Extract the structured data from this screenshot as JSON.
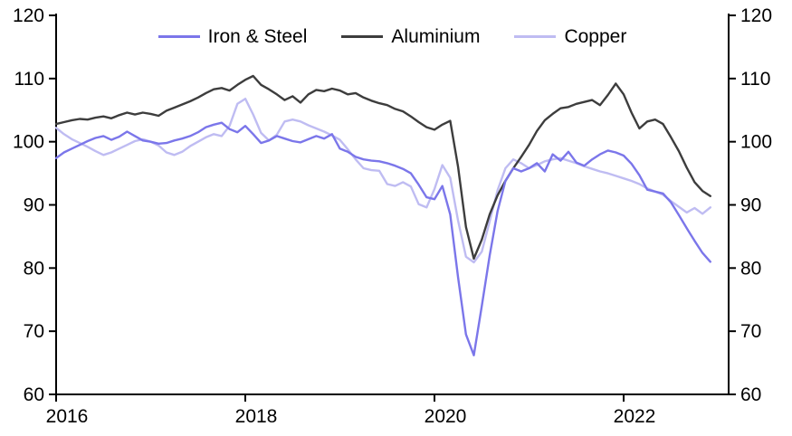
{
  "page": {
    "background": "#ffffff",
    "axis_color": "#000000",
    "text_color": "#000000"
  },
  "chart_data": {
    "type": "line",
    "title": "",
    "grid": false,
    "legend_position": "top-center",
    "x_axis": {
      "range_start": "2016-01",
      "range_end": "2022-12",
      "frequency": "monthly",
      "points_per_series": 84,
      "tick_labels": [
        "2016",
        "2018",
        "2020",
        "2022"
      ],
      "tick_month_indices": [
        0,
        24,
        48,
        72
      ]
    },
    "y_axis": {
      "min": 60,
      "max": 120,
      "ticks": [
        60,
        70,
        80,
        90,
        100,
        110,
        120
      ],
      "tick_labels": [
        "60",
        "70",
        "80",
        "90",
        "100",
        "110",
        "120"
      ],
      "mirrored_right_axis": true
    },
    "series": [
      {
        "name": "Iron & Steel",
        "color": "#7b76ea",
        "values": [
          97.4,
          98.3,
          98.9,
          99.5,
          100.1,
          100.6,
          100.9,
          100.3,
          100.8,
          101.6,
          100.9,
          100.2,
          100.0,
          99.7,
          99.8,
          100.2,
          100.5,
          100.9,
          101.5,
          102.3,
          102.7,
          103.0,
          102.0,
          101.5,
          102.5,
          101.2,
          99.8,
          100.2,
          100.9,
          100.5,
          100.1,
          99.9,
          100.4,
          100.9,
          100.5,
          101.2,
          98.9,
          98.4,
          97.6,
          97.2,
          97.0,
          96.9,
          96.6,
          96.2,
          95.7,
          95.0,
          93.2,
          91.2,
          90.9,
          93.0,
          88.5,
          78.5,
          69.5,
          66.2,
          74.0,
          82.0,
          89.0,
          93.8,
          95.8,
          95.3,
          95.8,
          96.6,
          95.3,
          98.0,
          97.0,
          98.4,
          96.7,
          96.2,
          97.2,
          98.0,
          98.6,
          98.3,
          97.8,
          96.5,
          94.7,
          92.4,
          92.1,
          91.8,
          90.4,
          88.4,
          86.3,
          84.3,
          82.4,
          81.0
        ]
      },
      {
        "name": "Aluminium",
        "color": "#3d3d3d",
        "values": [
          102.8,
          103.1,
          103.4,
          103.6,
          103.5,
          103.8,
          104.0,
          103.7,
          104.2,
          104.6,
          104.3,
          104.6,
          104.4,
          104.1,
          104.9,
          105.4,
          105.9,
          106.4,
          107.0,
          107.7,
          108.3,
          108.5,
          108.1,
          109.0,
          109.8,
          110.4,
          109.0,
          108.3,
          107.5,
          106.6,
          107.2,
          106.2,
          107.5,
          108.2,
          108.0,
          108.4,
          108.1,
          107.5,
          107.7,
          107.0,
          106.5,
          106.1,
          105.8,
          105.2,
          104.8,
          104.0,
          103.1,
          102.3,
          101.9,
          102.7,
          103.3,
          96.0,
          86.5,
          81.5,
          84.5,
          88.5,
          91.5,
          93.8,
          95.8,
          97.6,
          99.5,
          101.7,
          103.4,
          104.4,
          105.3,
          105.5,
          106.0,
          106.3,
          106.6,
          105.8,
          107.4,
          109.2,
          107.5,
          104.6,
          102.1,
          103.2,
          103.5,
          102.8,
          100.7,
          98.5,
          95.9,
          93.6,
          92.2,
          91.4
        ]
      },
      {
        "name": "Copper",
        "color": "#bfbcf2",
        "values": [
          102.2,
          101.2,
          100.4,
          99.8,
          99.2,
          98.5,
          97.9,
          98.3,
          98.9,
          99.5,
          100.1,
          100.4,
          100.0,
          99.4,
          98.3,
          97.9,
          98.4,
          99.3,
          100.0,
          100.7,
          101.2,
          100.9,
          102.5,
          106.0,
          106.8,
          104.3,
          101.4,
          100.2,
          101.1,
          103.2,
          103.5,
          103.2,
          102.6,
          102.1,
          101.6,
          101.0,
          100.3,
          98.8,
          97.2,
          95.8,
          95.5,
          95.4,
          93.3,
          93.0,
          93.6,
          92.9,
          90.1,
          89.6,
          92.5,
          96.3,
          94.3,
          87.5,
          81.8,
          80.9,
          82.6,
          87.4,
          92.3,
          95.8,
          97.2,
          96.6,
          95.8,
          96.3,
          96.9,
          97.2,
          97.4,
          97.0,
          96.6,
          96.1,
          95.7,
          95.3,
          95.0,
          94.6,
          94.2,
          93.8,
          93.3,
          92.6,
          92.1,
          91.6,
          90.6,
          89.7,
          88.8,
          89.5,
          88.6,
          89.6
        ]
      }
    ]
  }
}
